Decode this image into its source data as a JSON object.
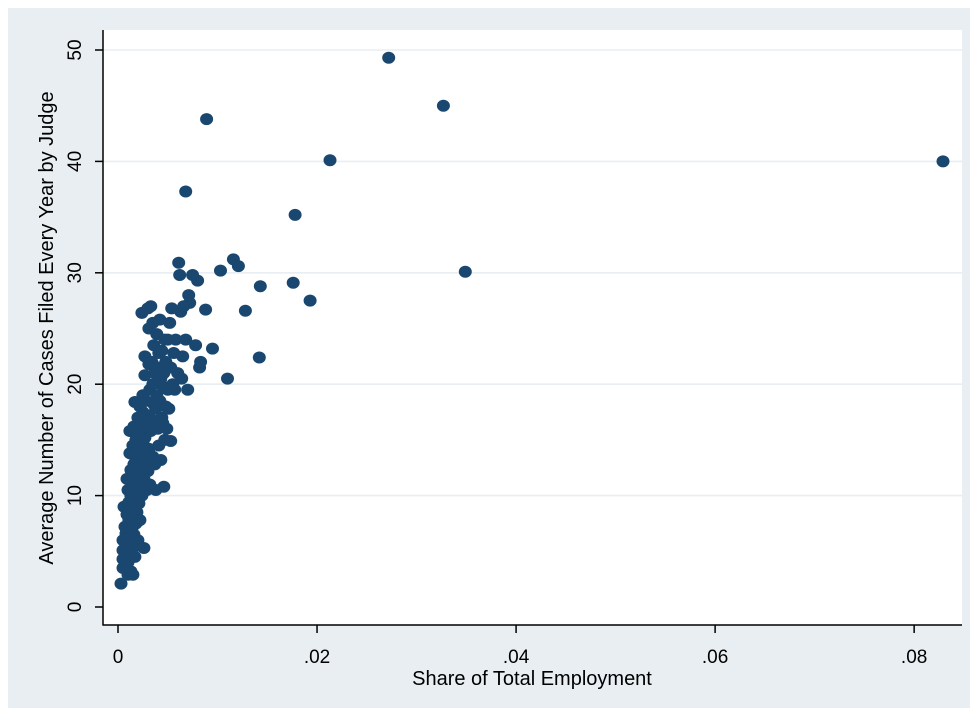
{
  "chart_data": {
    "type": "scatter",
    "title": "",
    "xlabel": "Share of Total Employment",
    "ylabel": "Average Number of Cases Filed Every Year by Judge",
    "xlim": [
      0,
      0.083
    ],
    "ylim": [
      0,
      50
    ],
    "xticks": [
      0,
      0.02,
      0.04,
      0.06,
      0.08
    ],
    "xtick_labels": [
      "0",
      ".02",
      ".04",
      ".06",
      ".08"
    ],
    "yticks": [
      0,
      10,
      20,
      30,
      40,
      50
    ],
    "ytick_labels": [
      "0",
      "10",
      "20",
      "30",
      "40",
      "50"
    ],
    "grid": "horizontal",
    "colors": {
      "marker": "#1a476f",
      "background": "#e8eef2",
      "plot": "#ffffff",
      "grid": "#e8eef2"
    },
    "points": [
      [
        0.0003,
        2.1
      ],
      [
        0.0005,
        3.5
      ],
      [
        0.0005,
        4.3
      ],
      [
        0.0005,
        5.1
      ],
      [
        0.0005,
        6.0
      ],
      [
        0.0006,
        9.0
      ],
      [
        0.0007,
        4.8
      ],
      [
        0.0007,
        7.2
      ],
      [
        0.0008,
        3.8
      ],
      [
        0.0008,
        5.6
      ],
      [
        0.0008,
        6.6
      ],
      [
        0.0009,
        11.5
      ],
      [
        0.0009,
        8.3
      ],
      [
        0.001,
        2.9
      ],
      [
        0.001,
        4.0
      ],
      [
        0.001,
        10.5
      ],
      [
        0.0011,
        5.3
      ],
      [
        0.0011,
        7.8
      ],
      [
        0.0011,
        9.4
      ],
      [
        0.0012,
        6.2
      ],
      [
        0.0012,
        8.8
      ],
      [
        0.0012,
        13.8
      ],
      [
        0.0012,
        15.8
      ],
      [
        0.0013,
        3.2
      ],
      [
        0.0013,
        4.7
      ],
      [
        0.0013,
        10.0
      ],
      [
        0.0013,
        12.3
      ],
      [
        0.0014,
        5.9
      ],
      [
        0.0014,
        7.0
      ],
      [
        0.0014,
        11.1
      ],
      [
        0.0015,
        8.0
      ],
      [
        0.0015,
        9.7
      ],
      [
        0.0015,
        14.5
      ],
      [
        0.0015,
        2.9
      ],
      [
        0.0016,
        6.5
      ],
      [
        0.0016,
        12.8
      ],
      [
        0.0016,
        16.2
      ],
      [
        0.0017,
        4.5
      ],
      [
        0.0017,
        9.0
      ],
      [
        0.0017,
        10.8
      ],
      [
        0.0017,
        18.4
      ],
      [
        0.0018,
        7.5
      ],
      [
        0.0018,
        13.2
      ],
      [
        0.0018,
        15.0
      ],
      [
        0.0019,
        5.5
      ],
      [
        0.0019,
        8.5
      ],
      [
        0.0019,
        11.8
      ],
      [
        0.002,
        6.0
      ],
      [
        0.002,
        10.2
      ],
      [
        0.002,
        14.0
      ],
      [
        0.002,
        17.0
      ],
      [
        0.0021,
        9.3
      ],
      [
        0.0021,
        12.5
      ],
      [
        0.0021,
        15.5
      ],
      [
        0.0022,
        7.8
      ],
      [
        0.0022,
        11.0
      ],
      [
        0.0022,
        18.0
      ],
      [
        0.0023,
        13.5
      ],
      [
        0.0023,
        16.5
      ],
      [
        0.0024,
        10.0
      ],
      [
        0.0024,
        12.0
      ],
      [
        0.0024,
        26.4
      ],
      [
        0.0025,
        14.8
      ],
      [
        0.0025,
        17.5
      ],
      [
        0.0025,
        19.0
      ],
      [
        0.0026,
        5.3
      ],
      [
        0.0026,
        11.5
      ],
      [
        0.0027,
        20.8
      ],
      [
        0.0027,
        22.5
      ],
      [
        0.0027,
        15.2
      ],
      [
        0.0028,
        13.0
      ],
      [
        0.0028,
        18.5
      ],
      [
        0.0029,
        10.5
      ],
      [
        0.0029,
        16.0
      ],
      [
        0.003,
        12.2
      ],
      [
        0.003,
        26.8
      ],
      [
        0.003,
        17.2
      ],
      [
        0.0031,
        14.2
      ],
      [
        0.0031,
        21.8
      ],
      [
        0.0031,
        25.0
      ],
      [
        0.0032,
        11.0
      ],
      [
        0.0032,
        19.5
      ],
      [
        0.0033,
        15.8
      ],
      [
        0.0033,
        27.0
      ],
      [
        0.0034,
        16.8
      ],
      [
        0.0034,
        22.0
      ],
      [
        0.0035,
        13.5
      ],
      [
        0.0035,
        20.0
      ],
      [
        0.0035,
        25.5
      ],
      [
        0.0036,
        18.2
      ],
      [
        0.0036,
        23.5
      ],
      [
        0.0037,
        12.8
      ],
      [
        0.0037,
        21.0
      ],
      [
        0.0038,
        10.5
      ],
      [
        0.0038,
        17.8
      ],
      [
        0.0039,
        19.0
      ],
      [
        0.0039,
        24.5
      ],
      [
        0.004,
        16.0
      ],
      [
        0.004,
        21.5
      ],
      [
        0.0041,
        14.5
      ],
      [
        0.0041,
        22.8
      ],
      [
        0.0042,
        18.5
      ],
      [
        0.0042,
        25.8
      ],
      [
        0.0043,
        13.2
      ],
      [
        0.0043,
        20.5
      ],
      [
        0.0044,
        17.0
      ],
      [
        0.0044,
        23.0
      ],
      [
        0.0045,
        16.5
      ],
      [
        0.0045,
        19.8
      ],
      [
        0.0046,
        10.8
      ],
      [
        0.0046,
        21.0
      ],
      [
        0.0047,
        15.0
      ],
      [
        0.0047,
        24.0
      ],
      [
        0.0048,
        18.0
      ],
      [
        0.0048,
        22.0
      ],
      [
        0.0049,
        16.0
      ],
      [
        0.005,
        19.5
      ],
      [
        0.005,
        24.0
      ],
      [
        0.0051,
        17.8
      ],
      [
        0.0052,
        25.5
      ],
      [
        0.0053,
        14.9
      ],
      [
        0.0053,
        21.5
      ],
      [
        0.0054,
        26.8
      ],
      [
        0.0055,
        20.0
      ],
      [
        0.0056,
        22.8
      ],
      [
        0.0057,
        19.5
      ],
      [
        0.0058,
        24.0
      ],
      [
        0.006,
        21.0
      ],
      [
        0.0061,
        30.9
      ],
      [
        0.0062,
        29.8
      ],
      [
        0.0063,
        26.5
      ],
      [
        0.0064,
        20.5
      ],
      [
        0.0065,
        22.5
      ],
      [
        0.0066,
        27.0
      ],
      [
        0.0068,
        37.3
      ],
      [
        0.0068,
        24.0
      ],
      [
        0.007,
        19.5
      ],
      [
        0.0071,
        28.0
      ],
      [
        0.0072,
        27.3
      ],
      [
        0.0075,
        29.8
      ],
      [
        0.0078,
        23.5
      ],
      [
        0.008,
        29.3
      ],
      [
        0.0082,
        21.5
      ],
      [
        0.0083,
        22.0
      ],
      [
        0.0088,
        26.7
      ],
      [
        0.0089,
        43.8
      ],
      [
        0.0095,
        23.2
      ],
      [
        0.0103,
        30.2
      ],
      [
        0.011,
        20.5
      ],
      [
        0.0116,
        31.2
      ],
      [
        0.0121,
        30.6
      ],
      [
        0.0128,
        26.6
      ],
      [
        0.0142,
        22.4
      ],
      [
        0.0143,
        28.8
      ],
      [
        0.0176,
        29.1
      ],
      [
        0.0178,
        35.2
      ],
      [
        0.0193,
        27.5
      ],
      [
        0.0213,
        40.1
      ],
      [
        0.0272,
        49.3
      ],
      [
        0.0327,
        45.0
      ],
      [
        0.0349,
        30.1
      ],
      [
        0.0829,
        40.0
      ]
    ]
  }
}
